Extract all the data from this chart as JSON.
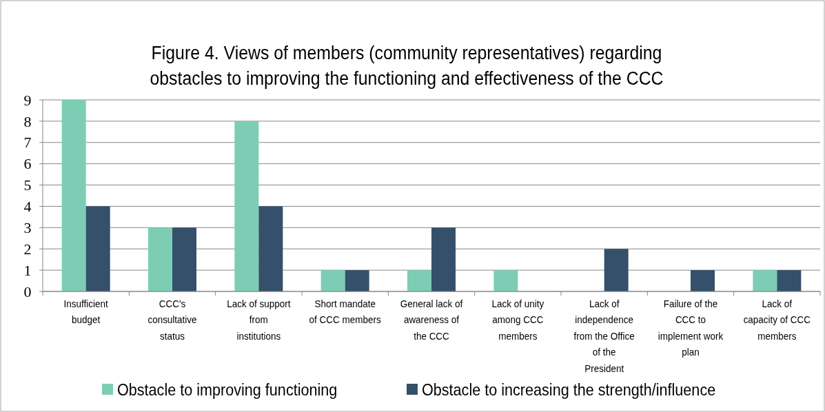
{
  "chart_data": {
    "type": "bar",
    "title": "Figure 4. Views of members (community representatives) regarding obstacles to improving the functioning and effectiveness of the CCC",
    "categories": [
      "Insufficient budget",
      "CCC's consultative status",
      "Lack of support from institutions",
      "Short mandate of CCC members",
      "General lack of awareness of the CCC",
      "Lack of unity among CCC members",
      "Lack of independence from the Office of the President",
      "Failure of the CCC to implement work plan",
      "Lack of capacity of CCC members"
    ],
    "series": [
      {
        "name": "Obstacle to improving functioning",
        "color": "#7dcdb4",
        "values": [
          9,
          3,
          8,
          1,
          1,
          1,
          0,
          0,
          1
        ]
      },
      {
        "name": "Obstacle to increasing the strength/influence",
        "color": "#34506b",
        "values": [
          4,
          3,
          4,
          1,
          3,
          0,
          2,
          1,
          1
        ]
      }
    ],
    "ylim": [
      0,
      9
    ],
    "yticks": [
      0,
      1,
      2,
      3,
      4,
      5,
      6,
      7,
      8,
      9
    ],
    "grid": "y",
    "legend": "bottom"
  }
}
